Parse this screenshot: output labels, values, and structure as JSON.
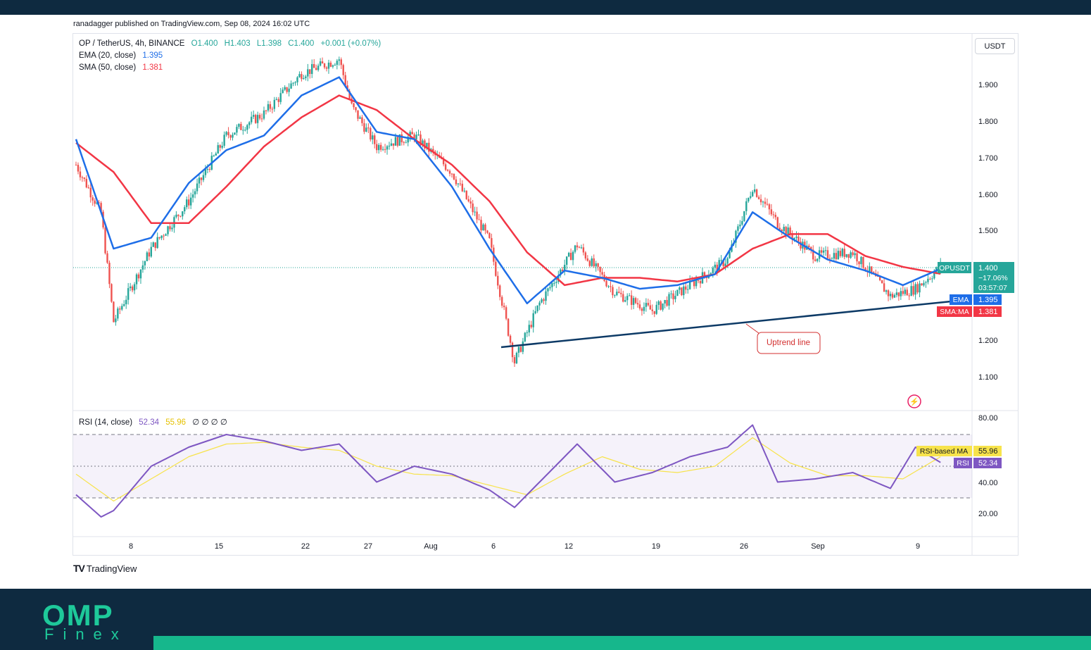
{
  "header": {
    "published": "ranadagger published on TradingView.com, Sep 08, 2024 16:02 UTC"
  },
  "legend": {
    "symbol": "OP / TetherUS, 4h, BINANCE",
    "ohlc": {
      "o": "O1.400",
      "h": "H1.403",
      "l": "L1.398",
      "c": "C1.400",
      "chg": "+0.001 (+0.07%)"
    },
    "ema": {
      "label": "EMA (20, close)",
      "value": "1.395"
    },
    "sma": {
      "label": "SMA (50, close)",
      "value": "1.381"
    },
    "rsi": {
      "label": "RSI (14, close)",
      "value": "52.34",
      "ma": "55.96",
      "extra": "∅ ∅ ∅ ∅"
    }
  },
  "price_axis": {
    "unit": "USDT",
    "ticks": [
      "1.900",
      "1.800",
      "1.700",
      "1.600",
      "1.500",
      "1.200",
      "1.100"
    ]
  },
  "rsi_axis": {
    "ticks": [
      "80.00",
      "40.00",
      "20.00"
    ]
  },
  "time_axis": {
    "ticks": [
      "8",
      "15",
      "22",
      "27",
      "Aug",
      "6",
      "12",
      "19",
      "26",
      "Sep",
      "9"
    ]
  },
  "price_labels": {
    "symbol": "OPUSDT",
    "price": "1.400",
    "change": "−17.06%",
    "countdown": "03:57:07",
    "ema_tag": "EMA",
    "ema_value": "1.395",
    "sma_tag": "SMA:MA",
    "sma_value": "1.381"
  },
  "rsi_labels": {
    "ma_tag": "RSI-based MA",
    "ma_value": "55.96",
    "rsi_tag": "RSI",
    "rsi_value": "52.34"
  },
  "annotation": {
    "text": "Uptrend line"
  },
  "footer": {
    "tv": "TradingView",
    "brand": "OMP",
    "sub": "Finex"
  },
  "colors": {
    "up": "#26a69a",
    "down": "#ef5350",
    "ema": "#1e6ee8",
    "sma": "#f23645",
    "rsi": "#7e57c2",
    "rsi_ma": "#f7e34b",
    "trend": "#0d3a66",
    "footer_bg": "#0e2a40",
    "footer_accent": "#16b78c"
  },
  "chart_data": [
    {
      "type": "line",
      "series": [
        {
          "name": "EMA (20, close)",
          "x": [
            "Jul 1",
            "Jul 4",
            "Jul 7",
            "Jul 10",
            "Jul 13",
            "Jul 16",
            "Jul 19",
            "Jul 22",
            "Jul 25",
            "Jul 28",
            "Jul 31",
            "Aug 3",
            "Aug 6",
            "Aug 9",
            "Aug 12",
            "Aug 15",
            "Aug 18",
            "Aug 21",
            "Aug 24",
            "Aug 27",
            "Aug 30",
            "Sep 2",
            "Sep 5",
            "Sep 8"
          ],
          "values": [
            1.75,
            1.45,
            1.48,
            1.63,
            1.72,
            1.76,
            1.87,
            1.92,
            1.77,
            1.75,
            1.62,
            1.45,
            1.3,
            1.39,
            1.37,
            1.34,
            1.35,
            1.38,
            1.55,
            1.48,
            1.42,
            1.39,
            1.35,
            1.395
          ]
        },
        {
          "name": "SMA (50, close)",
          "x": [
            "Jul 1",
            "Jul 4",
            "Jul 7",
            "Jul 10",
            "Jul 13",
            "Jul 16",
            "Jul 19",
            "Jul 22",
            "Jul 25",
            "Jul 28",
            "Jul 31",
            "Aug 3",
            "Aug 6",
            "Aug 9",
            "Aug 12",
            "Aug 15",
            "Aug 18",
            "Aug 21",
            "Aug 24",
            "Aug 27",
            "Aug 30",
            "Sep 2",
            "Sep 5",
            "Sep 8"
          ],
          "values": [
            1.74,
            1.66,
            1.52,
            1.52,
            1.62,
            1.73,
            1.81,
            1.87,
            1.83,
            1.75,
            1.68,
            1.58,
            1.44,
            1.35,
            1.37,
            1.37,
            1.36,
            1.38,
            1.45,
            1.49,
            1.49,
            1.43,
            1.4,
            1.381
          ]
        },
        {
          "name": "OPUSDT",
          "x": [
            "Jul 1",
            "Jul 3",
            "Jul 4",
            "Jul 7",
            "Jul 10",
            "Jul 13",
            "Jul 16",
            "Jul 19",
            "Jul 22",
            "Jul 23",
            "Jul 25",
            "Jul 28",
            "Jul 31",
            "Aug 3",
            "Aug 5",
            "Aug 7",
            "Aug 10",
            "Aug 13",
            "Aug 16",
            "Aug 19",
            "Aug 22",
            "Aug 24",
            "Aug 26",
            "Aug 29",
            "Sep 1",
            "Sep 4",
            "Sep 6",
            "Sep 8"
          ],
          "values": [
            1.68,
            1.55,
            1.25,
            1.45,
            1.58,
            1.76,
            1.82,
            1.93,
            1.97,
            1.84,
            1.73,
            1.76,
            1.66,
            1.47,
            1.14,
            1.3,
            1.46,
            1.33,
            1.28,
            1.35,
            1.42,
            1.62,
            1.52,
            1.43,
            1.44,
            1.32,
            1.34,
            1.4
          ]
        }
      ],
      "ylim": [
        1.05,
        2.0
      ]
    },
    {
      "type": "line",
      "series": [
        {
          "name": "RSI (14, close)",
          "x": [
            "Jul 1",
            "Jul 3",
            "Jul 4",
            "Jul 7",
            "Jul 10",
            "Jul 13",
            "Jul 16",
            "Jul 19",
            "Jul 22",
            "Jul 25",
            "Jul 28",
            "Jul 31",
            "Aug 3",
            "Aug 5",
            "Aug 7",
            "Aug 10",
            "Aug 13",
            "Aug 16",
            "Aug 19",
            "Aug 22",
            "Aug 24",
            "Aug 26",
            "Aug 29",
            "Sep 1",
            "Sep 4",
            "Sep 6",
            "Sep 8"
          ],
          "values": [
            32,
            18,
            22,
            50,
            62,
            70,
            66,
            60,
            64,
            40,
            50,
            45,
            35,
            24,
            40,
            64,
            40,
            46,
            56,
            62,
            76,
            40,
            42,
            46,
            36,
            62,
            52.34
          ]
        },
        {
          "name": "RSI-based MA",
          "x": [
            "Jul 1",
            "Jul 4",
            "Jul 7",
            "Jul 10",
            "Jul 13",
            "Jul 16",
            "Jul 19",
            "Jul 22",
            "Jul 25",
            "Jul 28",
            "Jul 31",
            "Aug 3",
            "Aug 6",
            "Aug 9",
            "Aug 12",
            "Aug 15",
            "Aug 18",
            "Aug 21",
            "Aug 24",
            "Aug 27",
            "Aug 30",
            "Sep 2",
            "Sep 5",
            "Sep 8"
          ],
          "values": [
            45,
            28,
            42,
            56,
            64,
            65,
            62,
            60,
            50,
            45,
            44,
            38,
            32,
            45,
            56,
            48,
            46,
            50,
            68,
            52,
            44,
            44,
            42,
            55.96
          ]
        }
      ],
      "ylim": [
        10,
        85
      ]
    }
  ]
}
